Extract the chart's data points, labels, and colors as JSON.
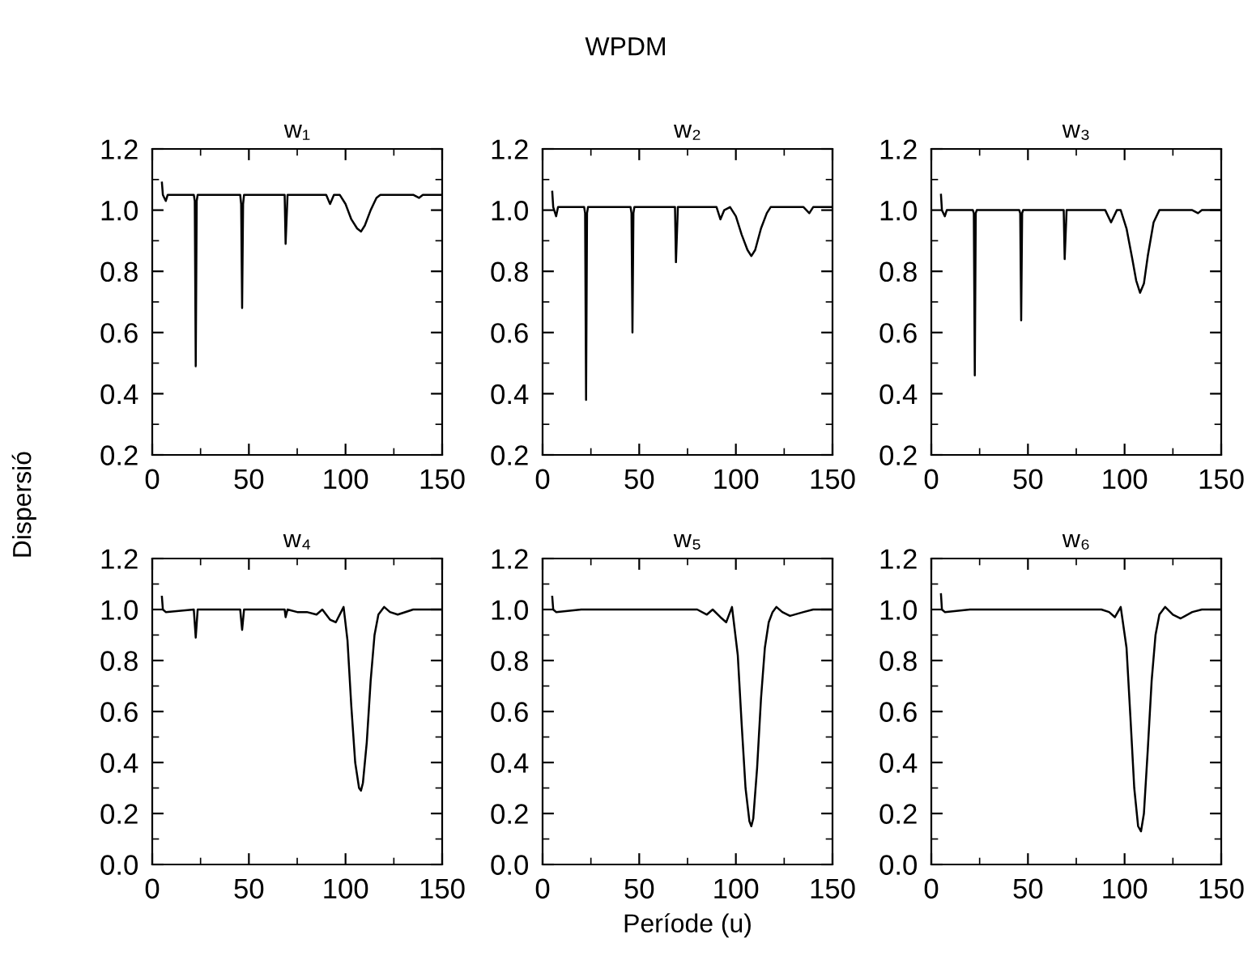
{
  "chart_data": [
    {
      "type": "line",
      "title": "w₁",
      "ylabel": "Dispersió",
      "annotations": [
        "WPDM"
      ],
      "grid": false,
      "xlim": [
        0,
        150
      ],
      "ylim": [
        0.2,
        1.2
      ],
      "xticks": [
        0,
        50,
        100,
        150,
        {
          "value": 25,
          "label": null
        },
        {
          "value": 75,
          "label": null
        },
        {
          "value": 125,
          "label": null
        }
      ],
      "yticks": [
        {
          "value": 0.2,
          "label": "0.2"
        },
        {
          "value": 0.4,
          "label": "0.4"
        },
        {
          "value": 0.6,
          "label": "0.6"
        },
        {
          "value": 0.8,
          "label": "0.8"
        },
        {
          "value": 1,
          "label": "1.0"
        },
        {
          "value": 1.2,
          "label": "1.2"
        },
        {
          "value": 0.3,
          "label": null
        },
        {
          "value": 0.5,
          "label": null
        },
        {
          "value": 0.7,
          "label": null
        },
        {
          "value": 0.9,
          "label": null
        },
        {
          "value": 1.1,
          "label": null
        }
      ],
      "series": [
        {
          "color": "#000000",
          "x": [
            5,
            5.5,
            7,
            8,
            21.5,
            22,
            22.5,
            23,
            23.5,
            45.5,
            46,
            46.5,
            47,
            47.5,
            68.5,
            69,
            70,
            90,
            92,
            94,
            97,
            100,
            103,
            106,
            108,
            110,
            113,
            116,
            118,
            135,
            138,
            140,
            150
          ],
          "values": [
            1.09,
            1.05,
            1.03,
            1.05,
            1.05,
            1.03,
            0.49,
            1.03,
            1.05,
            1.05,
            1.02,
            0.68,
            1.02,
            1.05,
            1.05,
            0.89,
            1.05,
            1.05,
            1.02,
            1.05,
            1.05,
            1.02,
            0.97,
            0.94,
            0.93,
            0.95,
            1.0,
            1.04,
            1.05,
            1.05,
            1.04,
            1.05,
            1.05
          ]
        }
      ]
    },
    {
      "type": "line",
      "title": "w₂",
      "grid": false,
      "xlim": [
        0,
        150
      ],
      "ylim": [
        0.2,
        1.2
      ],
      "xticks": [
        0,
        50,
        100,
        150,
        {
          "value": 25,
          "label": null
        },
        {
          "value": 75,
          "label": null
        },
        {
          "value": 125,
          "label": null
        }
      ],
      "yticks": [
        {
          "value": 0.2,
          "label": "0.2"
        },
        {
          "value": 0.4,
          "label": "0.4"
        },
        {
          "value": 0.6,
          "label": "0.6"
        },
        {
          "value": 0.8,
          "label": "0.8"
        },
        {
          "value": 1,
          "label": "1.0"
        },
        {
          "value": 1.2,
          "label": "1.2"
        },
        {
          "value": 0.3,
          "label": null
        },
        {
          "value": 0.5,
          "label": null
        },
        {
          "value": 0.7,
          "label": null
        },
        {
          "value": 0.9,
          "label": null
        },
        {
          "value": 1.1,
          "label": null
        }
      ],
      "series": [
        {
          "color": "#000000",
          "x": [
            5,
            5.5,
            7,
            8,
            21.5,
            22,
            22.5,
            23,
            23.5,
            45.5,
            46,
            46.5,
            47,
            47.5,
            68.5,
            69,
            70,
            90,
            92,
            94,
            97,
            100,
            103,
            106,
            108,
            110,
            113,
            116,
            118,
            135,
            138,
            140,
            150
          ],
          "values": [
            1.06,
            1.01,
            0.98,
            1.01,
            1.01,
            0.99,
            0.38,
            0.99,
            1.01,
            1.01,
            0.99,
            0.6,
            0.99,
            1.01,
            1.01,
            0.83,
            1.01,
            1.01,
            0.97,
            1.0,
            1.01,
            0.98,
            0.92,
            0.87,
            0.85,
            0.87,
            0.94,
            0.99,
            1.01,
            1.01,
            0.99,
            1.01,
            1.01
          ]
        }
      ]
    },
    {
      "type": "line",
      "title": "w₃",
      "grid": false,
      "xlim": [
        0,
        150
      ],
      "ylim": [
        0.2,
        1.2
      ],
      "xticks": [
        0,
        50,
        100,
        150,
        {
          "value": 25,
          "label": null
        },
        {
          "value": 75,
          "label": null
        },
        {
          "value": 125,
          "label": null
        }
      ],
      "yticks": [
        {
          "value": 0.2,
          "label": "0.2"
        },
        {
          "value": 0.4,
          "label": "0.4"
        },
        {
          "value": 0.6,
          "label": "0.6"
        },
        {
          "value": 0.8,
          "label": "0.8"
        },
        {
          "value": 1,
          "label": "1.0"
        },
        {
          "value": 1.2,
          "label": "1.2"
        },
        {
          "value": 0.3,
          "label": null
        },
        {
          "value": 0.5,
          "label": null
        },
        {
          "value": 0.7,
          "label": null
        },
        {
          "value": 0.9,
          "label": null
        },
        {
          "value": 1.1,
          "label": null
        }
      ],
      "series": [
        {
          "color": "#000000",
          "x": [
            5,
            5.5,
            7,
            8,
            21.5,
            22,
            22.5,
            23,
            23.5,
            45.5,
            46,
            46.5,
            47,
            47.5,
            68.5,
            69,
            70,
            90,
            93,
            96,
            98,
            101,
            104,
            106,
            108,
            110,
            112,
            115,
            118,
            135,
            138,
            140,
            150
          ],
          "values": [
            1.05,
            1.0,
            0.98,
            1.0,
            1.0,
            0.99,
            0.46,
            0.99,
            1.0,
            1.0,
            0.99,
            0.64,
            0.99,
            1.0,
            1.0,
            0.84,
            1.0,
            1.0,
            0.96,
            1.0,
            1.0,
            0.94,
            0.84,
            0.77,
            0.73,
            0.76,
            0.85,
            0.96,
            1.0,
            1.0,
            0.99,
            1.0,
            1.0
          ]
        }
      ]
    },
    {
      "type": "line",
      "title": "w₄",
      "grid": false,
      "xlim": [
        0,
        150
      ],
      "ylim": [
        0,
        1.2
      ],
      "xticks": [
        0,
        50,
        100,
        150,
        {
          "value": 25,
          "label": null
        },
        {
          "value": 75,
          "label": null
        },
        {
          "value": 125,
          "label": null
        }
      ],
      "yticks": [
        {
          "value": 0,
          "label": "0.0"
        },
        {
          "value": 0.2,
          "label": "0.2"
        },
        {
          "value": 0.4,
          "label": "0.4"
        },
        {
          "value": 0.6,
          "label": "0.6"
        },
        {
          "value": 0.8,
          "label": "0.8"
        },
        {
          "value": 1,
          "label": "1.0"
        },
        {
          "value": 1.2,
          "label": "1.2"
        },
        {
          "value": 0.1,
          "label": null
        },
        {
          "value": 0.3,
          "label": null
        },
        {
          "value": 0.5,
          "label": null
        },
        {
          "value": 0.7,
          "label": null
        },
        {
          "value": 0.9,
          "label": null
        },
        {
          "value": 1.1,
          "label": null
        }
      ],
      "series": [
        {
          "color": "#000000",
          "x": [
            5,
            5.5,
            7,
            21.5,
            22.5,
            23.5,
            45.5,
            46.5,
            47.5,
            68.5,
            69,
            70,
            75,
            80,
            85,
            88,
            92,
            95,
            99,
            101,
            103,
            105,
            107,
            108,
            109,
            111,
            113,
            115,
            117,
            120,
            123,
            127,
            135,
            150
          ],
          "values": [
            1.05,
            1.0,
            0.99,
            1.0,
            0.89,
            1.0,
            1.0,
            0.92,
            1.0,
            1.0,
            0.97,
            1.0,
            0.99,
            0.99,
            0.98,
            1.0,
            0.96,
            0.95,
            1.01,
            0.88,
            0.62,
            0.4,
            0.3,
            0.29,
            0.32,
            0.48,
            0.72,
            0.9,
            0.98,
            1.01,
            0.99,
            0.98,
            1.0,
            1.0
          ]
        }
      ]
    },
    {
      "type": "line",
      "title": "w₅",
      "xlabel": "Període (u)",
      "grid": false,
      "xlim": [
        0,
        150
      ],
      "ylim": [
        0,
        1.2
      ],
      "xticks": [
        0,
        50,
        100,
        150,
        {
          "value": 25,
          "label": null
        },
        {
          "value": 75,
          "label": null
        },
        {
          "value": 125,
          "label": null
        }
      ],
      "yticks": [
        {
          "value": 0,
          "label": "0.0"
        },
        {
          "value": 0.2,
          "label": "0.2"
        },
        {
          "value": 0.4,
          "label": "0.4"
        },
        {
          "value": 0.6,
          "label": "0.6"
        },
        {
          "value": 0.8,
          "label": "0.8"
        },
        {
          "value": 1,
          "label": "1.0"
        },
        {
          "value": 1.2,
          "label": "1.2"
        },
        {
          "value": 0.1,
          "label": null
        },
        {
          "value": 0.3,
          "label": null
        },
        {
          "value": 0.5,
          "label": null
        },
        {
          "value": 0.7,
          "label": null
        },
        {
          "value": 0.9,
          "label": null
        },
        {
          "value": 1.1,
          "label": null
        }
      ],
      "series": [
        {
          "color": "#000000",
          "x": [
            5,
            5.5,
            7,
            20,
            40,
            60,
            80,
            85,
            88,
            92,
            95,
            98,
            101,
            103,
            105,
            107,
            108,
            109,
            111,
            113,
            115,
            117,
            119,
            121,
            124,
            128,
            135,
            140,
            150
          ],
          "values": [
            1.05,
            1.0,
            0.99,
            1.0,
            1.0,
            1.0,
            1.0,
            0.98,
            1.0,
            0.97,
            0.95,
            1.01,
            0.82,
            0.55,
            0.3,
            0.17,
            0.15,
            0.18,
            0.38,
            0.65,
            0.85,
            0.95,
            0.99,
            1.01,
            0.99,
            0.975,
            0.99,
            1.0,
            1.0
          ]
        }
      ]
    },
    {
      "type": "line",
      "title": "w₆",
      "grid": false,
      "xlim": [
        0,
        150
      ],
      "ylim": [
        0,
        1.2
      ],
      "xticks": [
        0,
        50,
        100,
        150,
        {
          "value": 25,
          "label": null
        },
        {
          "value": 75,
          "label": null
        },
        {
          "value": 125,
          "label": null
        }
      ],
      "yticks": [
        {
          "value": 0,
          "label": "0.0"
        },
        {
          "value": 0.2,
          "label": "0.2"
        },
        {
          "value": 0.4,
          "label": "0.4"
        },
        {
          "value": 0.6,
          "label": "0.6"
        },
        {
          "value": 0.8,
          "label": "0.8"
        },
        {
          "value": 1,
          "label": "1.0"
        },
        {
          "value": 1.2,
          "label": "1.2"
        },
        {
          "value": 0.1,
          "label": null
        },
        {
          "value": 0.3,
          "label": null
        },
        {
          "value": 0.5,
          "label": null
        },
        {
          "value": 0.7,
          "label": null
        },
        {
          "value": 0.9,
          "label": null
        },
        {
          "value": 1.1,
          "label": null
        }
      ],
      "series": [
        {
          "color": "#000000",
          "x": [
            5,
            5.5,
            7,
            20,
            40,
            60,
            80,
            88,
            92,
            95,
            98,
            101,
            103,
            105,
            107,
            108.5,
            110,
            112,
            114,
            116,
            118,
            121,
            125,
            129,
            135,
            140,
            150
          ],
          "values": [
            1.06,
            1.0,
            0.99,
            1.0,
            1.0,
            1.0,
            1.0,
            1.0,
            0.99,
            0.97,
            1.01,
            0.85,
            0.58,
            0.3,
            0.15,
            0.13,
            0.2,
            0.45,
            0.72,
            0.9,
            0.98,
            1.01,
            0.98,
            0.965,
            0.99,
            1.0,
            1.0
          ]
        }
      ]
    }
  ]
}
